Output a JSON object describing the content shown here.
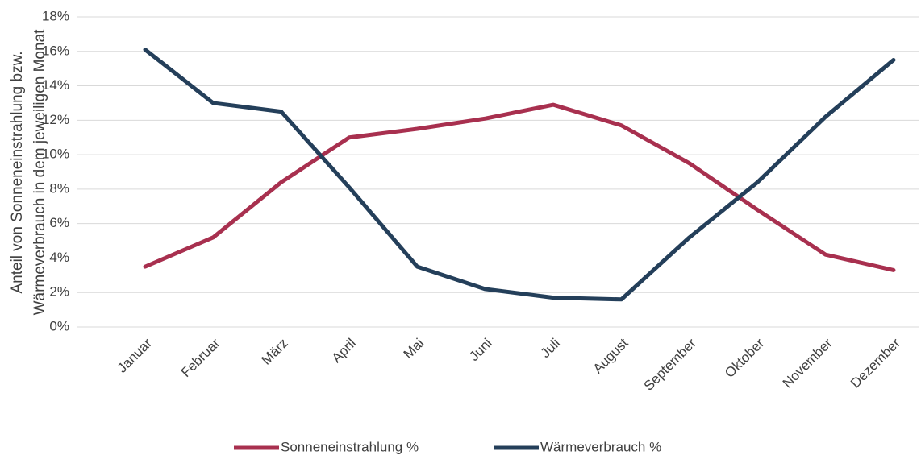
{
  "chart_data": {
    "type": "line",
    "ylabel": [
      "Anteil von Sonneneinstrahlung bzw.",
      "Wärmeverbrauch in dem jeweiligen Monat"
    ],
    "categories": [
      "Januar",
      "Februar",
      "März",
      "April",
      "Mai",
      "Juni",
      "Juli",
      "August",
      "September",
      "Oktober",
      "November",
      "Dezember"
    ],
    "series": [
      {
        "name": "Sonneneinstrahlung %",
        "color": "#a8304f",
        "values": [
          3.5,
          5.2,
          8.4,
          11.0,
          11.5,
          12.1,
          12.9,
          11.7,
          9.5,
          6.8,
          4.2,
          3.3
        ]
      },
      {
        "name": "Wärmeverbrauch %",
        "color": "#243f5a",
        "values": [
          16.1,
          13.0,
          12.5,
          8.1,
          3.5,
          2.2,
          1.7,
          1.6,
          5.2,
          8.4,
          12.2,
          15.5
        ]
      }
    ],
    "ylim": [
      0,
      18
    ],
    "yticks": [
      {
        "value": 0,
        "label": "0%"
      },
      {
        "value": 2,
        "label": "2%"
      },
      {
        "value": 4,
        "label": "4%"
      },
      {
        "value": 6,
        "label": "6%"
      },
      {
        "value": 8,
        "label": "8%"
      },
      {
        "value": 10,
        "label": "10%"
      },
      {
        "value": 12,
        "label": "12%"
      },
      {
        "value": 14,
        "label": "14%"
      },
      {
        "value": 16,
        "label": "16%"
      },
      {
        "value": 18,
        "label": "18%"
      }
    ],
    "grid": true,
    "legend": "bottom"
  }
}
